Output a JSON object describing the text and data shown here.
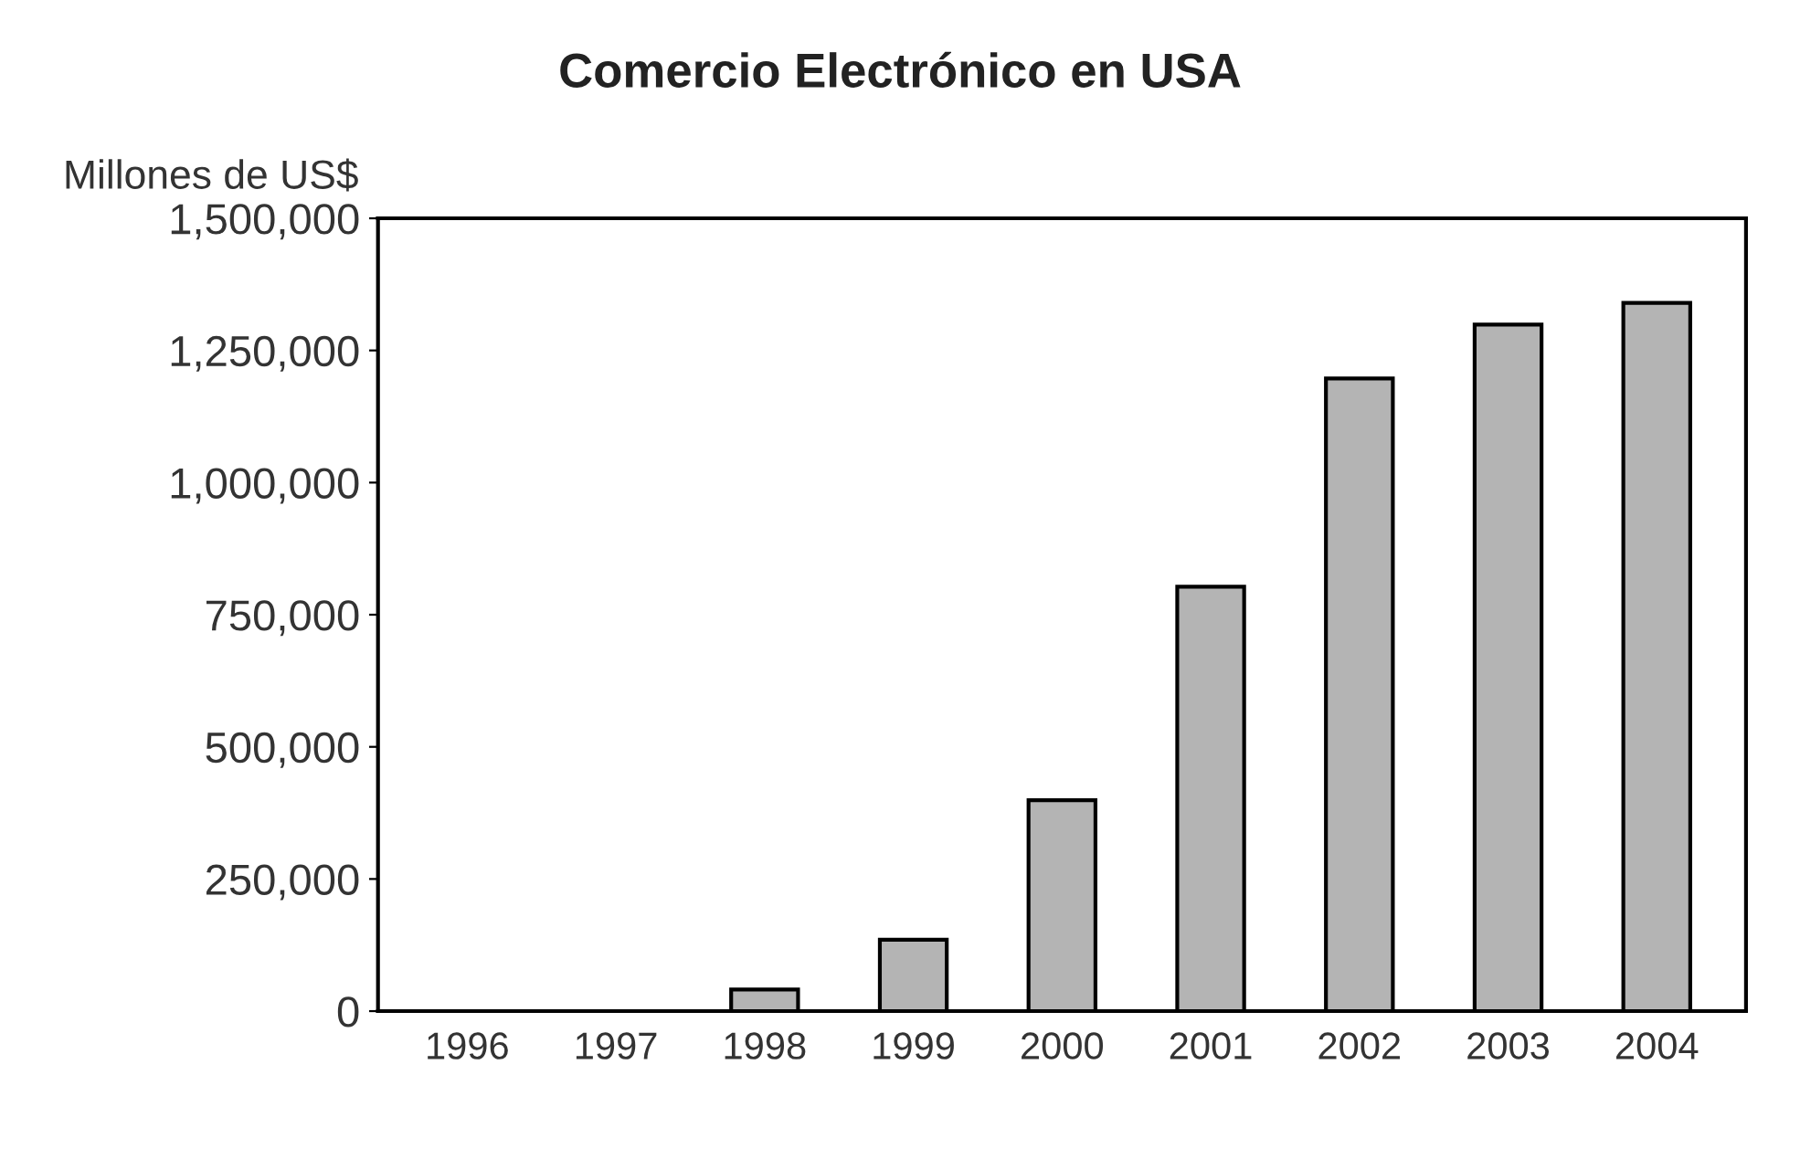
{
  "chart_data": {
    "type": "bar",
    "title": "Comercio Electrónico en USA",
    "ylabel": "Millones de US$",
    "categories": [
      "1996",
      "1997",
      "1998",
      "1999",
      "2000",
      "2001",
      "2002",
      "2003",
      "2004"
    ],
    "values": [
      null,
      null,
      41000,
      135000,
      399000,
      803000,
      1197000,
      1299000,
      1340000
    ],
    "color": "#b4b4b4",
    "ylim": [
      0,
      1500000
    ],
    "yticks": [
      {
        "value": 0,
        "label": "0"
      },
      {
        "value": 250000,
        "label": "250,000"
      },
      {
        "value": 500000,
        "label": "500,000"
      },
      {
        "value": 750000,
        "label": "750,000"
      },
      {
        "value": 1000000,
        "label": "1,000,000"
      },
      {
        "value": 1250000,
        "label": "1,250,000"
      },
      {
        "value": 1500000,
        "label": "1,500,000"
      }
    ],
    "grid": false
  }
}
